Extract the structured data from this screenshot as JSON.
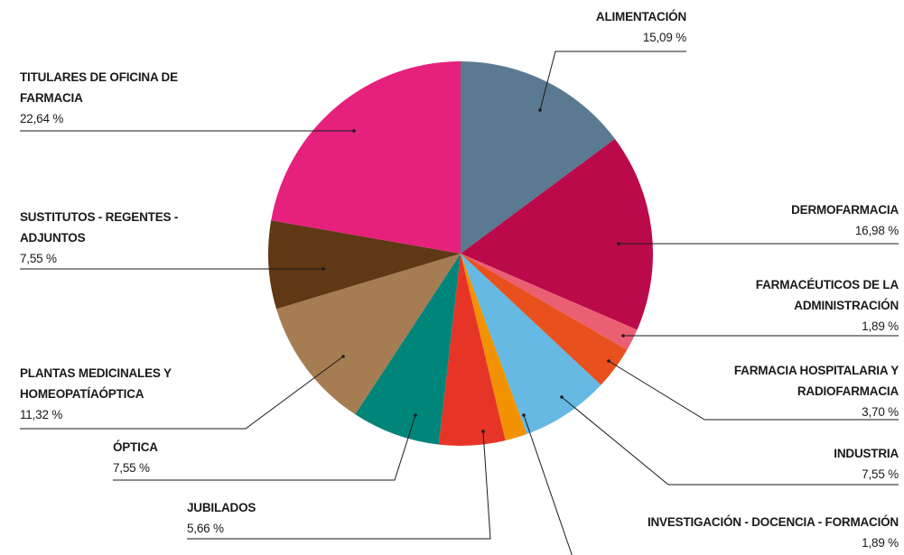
{
  "chart_data": {
    "type": "pie",
    "categories": [
      "ALIMENTACIÓN",
      "DERMOFARMACIA",
      "FARMACÉUTICOS DE LA ADMINISTRACIÓN",
      "FARMACIA HOSPITALARIA Y RADIOFARMACIA",
      "INDUSTRIA",
      "INVESTIGACIÓN - DOCENCIA - FORMACIÓN",
      "JUBILADOS",
      "ÓPTICA",
      "PLANTAS MEDICINALES Y HOMEOPATÍAÓPTICA",
      "SUSTITUTOS - REGENTES - ADJUNTOS",
      "TITULARES DE OFICINA DE FARMACIA"
    ],
    "values": [
      15.09,
      16.98,
      1.89,
      3.7,
      7.55,
      1.89,
      5.66,
      7.55,
      11.32,
      7.55,
      22.64
    ],
    "value_labels": [
      "15,09 %",
      "16,98 %",
      "1,89 %",
      "3,70 %",
      "7,55 %",
      "1,89 %",
      "5,66 %",
      "7,55 %",
      "11,32 %",
      "7,55 %",
      "22,64 %"
    ],
    "colors": [
      "#5a7a91",
      "#bb0a4a",
      "#eb5f73",
      "#e8501e",
      "#65b9e2",
      "#f39200",
      "#e63527",
      "#00857a",
      "#a67c52",
      "#603813",
      "#e6207d"
    ]
  }
}
